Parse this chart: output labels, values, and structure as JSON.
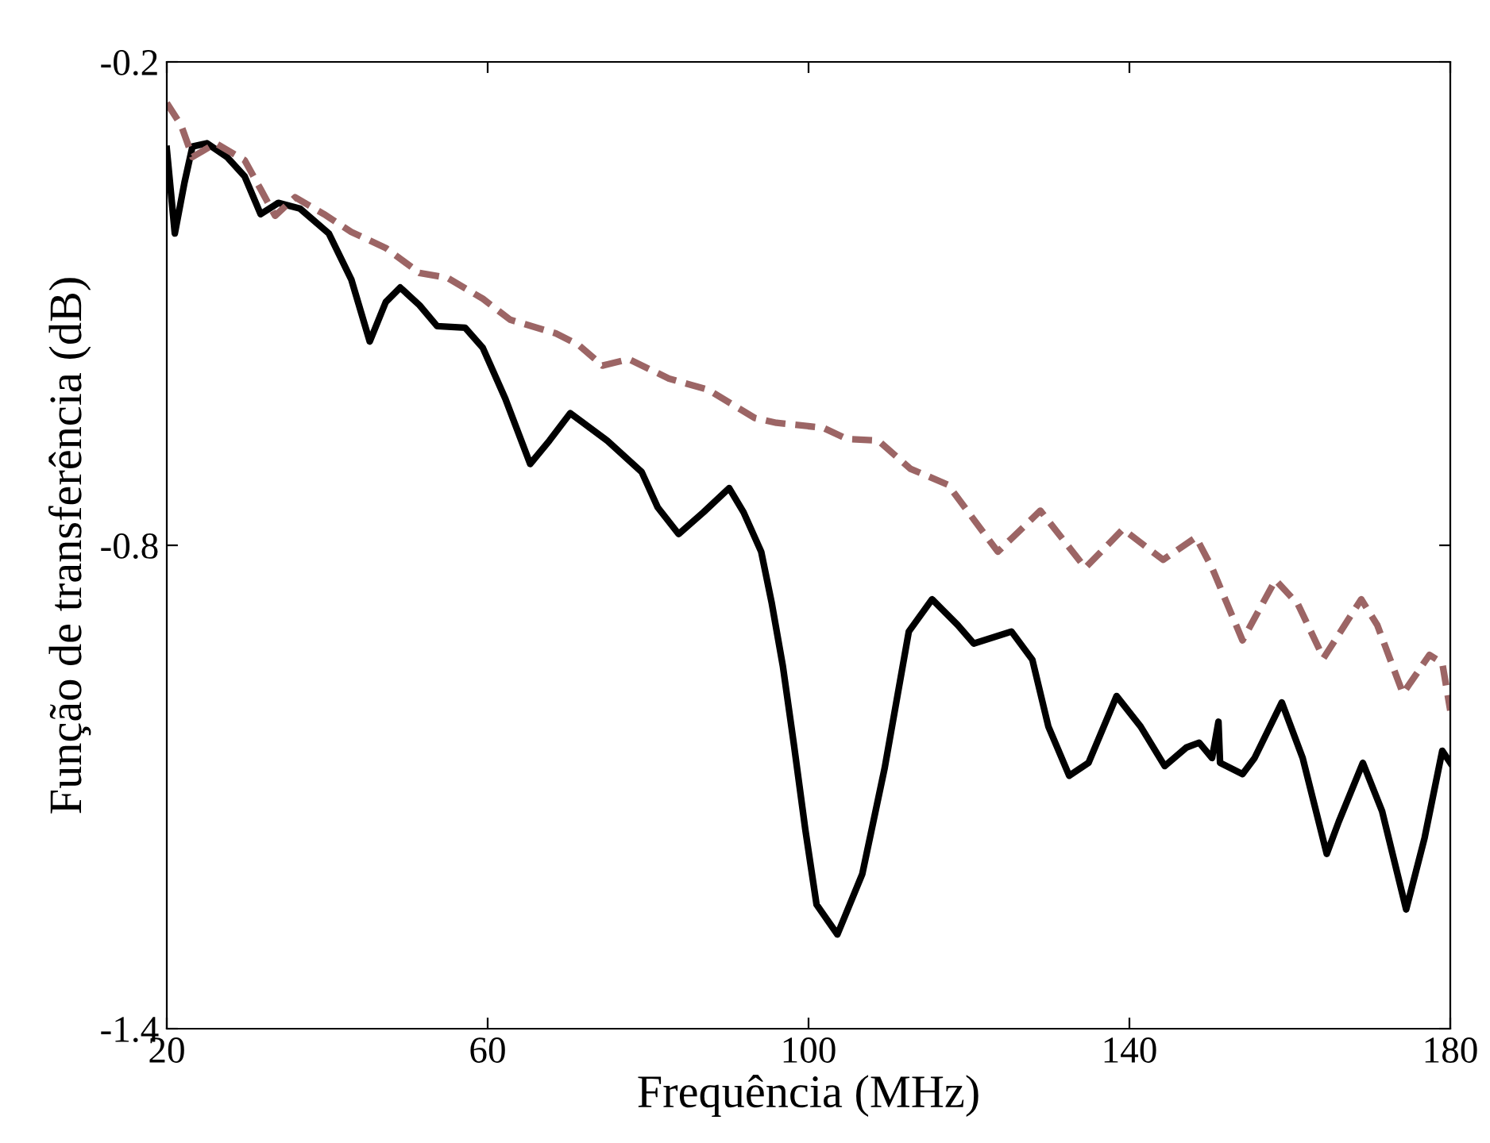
{
  "chart_data": {
    "type": "line",
    "xlabel": "Frequência (MHz)",
    "ylabel": "Função de transferência (dB)",
    "xlim": [
      20,
      180
    ],
    "xticks": [
      20,
      60,
      100,
      140,
      180
    ],
    "ylim": [
      -1.4,
      -0.2
    ],
    "yticks": [
      -1.4,
      -0.8,
      -0.2
    ],
    "grid": false,
    "legend": false,
    "series": [
      {
        "color": "#000000",
        "line_style": "solid",
        "x": [
          20,
          21.0,
          22.2,
          23.2,
          25.0,
          27.5,
          29.7,
          31.7,
          33.9,
          36.6,
          40.2,
          43.0,
          45.3,
          47.3,
          49.1,
          51.5,
          53.7,
          57.2,
          59.4,
          62.2,
          65.3,
          67.7,
          70.3,
          74.9,
          79.2,
          81.2,
          83.8,
          86.9,
          90.1,
          91.9,
          94.1,
          95.4,
          96.8,
          98.2,
          99.6,
          101.0,
          103.6,
          106.7,
          109.5,
          112.5,
          115.4,
          118.6,
          120.6,
          125.3,
          127.9,
          129.9,
          132.5,
          134.9,
          138.4,
          141.4,
          144.4,
          147.1,
          148.7,
          150.3,
          151.1,
          151.3,
          154.1,
          155.6,
          159.0,
          161.6,
          164.6,
          166.1,
          169.1,
          171.5,
          174.5,
          176.8,
          179.0,
          180
        ],
        "values": [
          -0.308,
          -0.413,
          -0.35,
          -0.305,
          -0.301,
          -0.318,
          -0.342,
          -0.389,
          -0.375,
          -0.382,
          -0.413,
          -0.47,
          -0.547,
          -0.498,
          -0.48,
          -0.502,
          -0.528,
          -0.53,
          -0.555,
          -0.618,
          -0.699,
          -0.67,
          -0.636,
          -0.67,
          -0.709,
          -0.753,
          -0.786,
          -0.759,
          -0.729,
          -0.759,
          -0.808,
          -0.871,
          -0.95,
          -1.049,
          -1.153,
          -1.246,
          -1.283,
          -1.208,
          -1.076,
          -0.907,
          -0.867,
          -0.899,
          -0.922,
          -0.907,
          -0.942,
          -1.025,
          -1.086,
          -1.07,
          -0.987,
          -1.025,
          -1.074,
          -1.051,
          -1.045,
          -1.064,
          -1.019,
          -1.07,
          -1.084,
          -1.064,
          -0.995,
          -1.064,
          -1.183,
          -1.143,
          -1.07,
          -1.13,
          -1.252,
          -1.163,
          -1.055,
          -1.07
        ]
      },
      {
        "color": "#9c6565",
        "line_style": "dashed",
        "x": [
          20,
          21.8,
          23.2,
          26.1,
          29.7,
          31.7,
          33.5,
          36.0,
          39.6,
          43.0,
          47.3,
          51.5,
          55.0,
          59.4,
          62.8,
          68.5,
          71.3,
          74.3,
          77.6,
          82.6,
          87.5,
          93.3,
          96.0,
          101.8,
          104.8,
          108.7,
          112.7,
          117.4,
          120.0,
          123.6,
          128.9,
          134.5,
          139.2,
          144.2,
          148.3,
          150.3,
          154.1,
          158.2,
          161.0,
          164.2,
          168.9,
          170.9,
          174.1,
          177.4,
          179.0,
          180
        ],
        "values": [
          -0.251,
          -0.279,
          -0.318,
          -0.301,
          -0.322,
          -0.358,
          -0.391,
          -0.368,
          -0.389,
          -0.411,
          -0.431,
          -0.462,
          -0.468,
          -0.494,
          -0.52,
          -0.537,
          -0.551,
          -0.577,
          -0.569,
          -0.593,
          -0.607,
          -0.642,
          -0.648,
          -0.654,
          -0.668,
          -0.67,
          -0.705,
          -0.725,
          -0.76,
          -0.808,
          -0.757,
          -0.828,
          -0.78,
          -0.818,
          -0.79,
          -0.828,
          -0.918,
          -0.843,
          -0.873,
          -0.94,
          -0.867,
          -0.899,
          -0.984,
          -0.936,
          -0.946,
          -1.005
        ]
      }
    ]
  }
}
